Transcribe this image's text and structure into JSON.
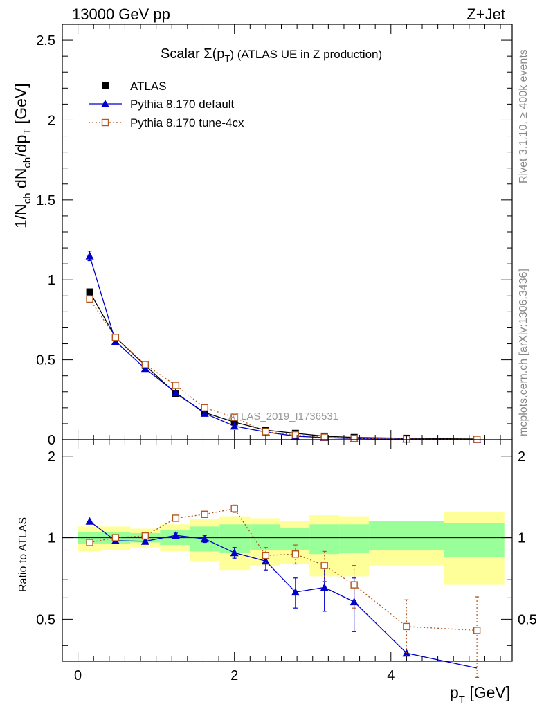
{
  "header": {
    "energy_label": "13000 GeV pp",
    "process_label": "Z+Jet",
    "rivet_label": "Rivet 3.1.10, ≥ 400k events",
    "mcplots_label": "mcplots.cern.ch [arXiv:1306.3436]",
    "analysis_label": "ATLAS_2019_I1736531"
  },
  "chart_data": [
    {
      "type": "scatter",
      "panel": "main",
      "title": "Scalar Σ(p_T) (ATLAS UE in Z production)",
      "title_parts": {
        "pre": "Scalar Σ(p",
        "sub": "T",
        "post": ") (ATLAS UE in Z production)"
      },
      "xlabel": "p_T [GeV]",
      "ylabel": "1/N_ch dN_ch/dp_T [GeV]",
      "xlim": [
        -0.2,
        5.55
      ],
      "ylim": [
        0,
        2.6
      ],
      "xticks": [
        0,
        2,
        4
      ],
      "yticks": [
        0,
        0.5,
        1,
        1.5,
        2,
        2.5
      ],
      "ytick_labels": [
        "0",
        "0.5",
        "1",
        "1.5",
        "2",
        "2.5"
      ],
      "legend_position": "top-left",
      "legend": [
        "ATLAS",
        "Pythia 8.170 default",
        "Pythia 8.170 tune-4cx"
      ],
      "x": [
        0.15,
        0.48,
        0.86,
        1.25,
        1.62,
        2.0,
        2.4,
        2.78,
        3.15,
        3.53,
        4.2,
        5.1
      ],
      "series": [
        {
          "name": "ATLAS",
          "color": "#000000",
          "marker": "square",
          "values": [
            0.925,
            0.64,
            0.465,
            0.29,
            0.17,
            0.11,
            0.06,
            0.04,
            0.022,
            0.014,
            0.009,
            0.004
          ]
        },
        {
          "name": "Pythia 8.170 default",
          "color": "#0000cc",
          "marker": "triangle",
          "values": [
            1.15,
            0.615,
            0.445,
            0.295,
            0.165,
            0.085,
            0.048,
            0.022,
            0.013,
            0.007,
            0.003,
            0.001
          ],
          "errors": [
            0.03,
            0,
            0,
            0,
            0,
            0,
            0,
            0,
            0,
            0,
            0,
            0
          ]
        },
        {
          "name": "Pythia 8.170 tune-4cx",
          "color": "#b5561b",
          "marker": "open-square",
          "values": [
            0.88,
            0.64,
            0.47,
            0.34,
            0.2,
            0.14,
            0.05,
            0.03,
            0.015,
            0.008,
            0.004,
            0.002
          ]
        }
      ]
    },
    {
      "type": "scatter",
      "panel": "ratio",
      "xlabel": "p_T [GeV]",
      "ylabel": "Ratio to ATLAS",
      "xlim": [
        -0.2,
        5.55
      ],
      "ylim": [
        0.35,
        2.3
      ],
      "xticks": [
        0,
        2,
        4
      ],
      "yticks": [
        0.5,
        1,
        2
      ],
      "ytick_labels": [
        "0.5",
        "1",
        "2"
      ],
      "bins": [
        {
          "lo": 0.0,
          "hi": 0.3,
          "g": [
            0.95,
            1.05
          ],
          "y": [
            0.89,
            1.1
          ]
        },
        {
          "lo": 0.3,
          "hi": 0.67,
          "g": [
            0.95,
            1.05
          ],
          "y": [
            0.9,
            1.1
          ]
        },
        {
          "lo": 0.67,
          "hi": 1.05,
          "g": [
            0.96,
            1.04
          ],
          "y": [
            0.92,
            1.08
          ]
        },
        {
          "lo": 1.05,
          "hi": 1.43,
          "g": [
            0.94,
            1.07
          ],
          "y": [
            0.89,
            1.12
          ]
        },
        {
          "lo": 1.43,
          "hi": 1.81,
          "g": [
            0.89,
            1.1
          ],
          "y": [
            0.82,
            1.17
          ]
        },
        {
          "lo": 1.81,
          "hi": 2.2,
          "g": [
            0.88,
            1.12
          ],
          "y": [
            0.76,
            1.2
          ]
        },
        {
          "lo": 2.2,
          "hi": 2.58,
          "g": [
            0.9,
            1.12
          ],
          "y": [
            0.79,
            1.18
          ]
        },
        {
          "lo": 2.58,
          "hi": 2.96,
          "g": [
            0.9,
            1.09
          ],
          "y": [
            0.8,
            1.15
          ]
        },
        {
          "lo": 2.96,
          "hi": 3.34,
          "g": [
            0.87,
            1.12
          ],
          "y": [
            0.72,
            1.21
          ]
        },
        {
          "lo": 3.34,
          "hi": 3.72,
          "g": [
            0.88,
            1.12
          ],
          "y": [
            0.72,
            1.2
          ]
        },
        {
          "lo": 3.72,
          "hi": 4.68,
          "g": [
            0.9,
            1.15
          ],
          "y": [
            0.79,
            1.15
          ]
        },
        {
          "lo": 4.68,
          "hi": 5.45,
          "g": [
            0.85,
            1.13
          ],
          "y": [
            0.67,
            1.24
          ]
        }
      ],
      "x": [
        0.15,
        0.48,
        0.86,
        1.25,
        1.62,
        2.0,
        2.4,
        2.78,
        3.15,
        3.53,
        4.2,
        5.1
      ],
      "series": [
        {
          "name": "Pythia 8.170 default",
          "color": "#0000cc",
          "marker": "triangle",
          "values": [
            1.15,
            0.975,
            0.97,
            1.02,
            0.99,
            0.88,
            0.82,
            0.63,
            0.655,
            0.58,
            0.375,
            0.33
          ],
          "errors": [
            0,
            0,
            0,
            0.02,
            0.03,
            0.04,
            0.06,
            0.08,
            0.12,
            0.13,
            0,
            0
          ]
        },
        {
          "name": "Pythia 8.170 tune-4cx",
          "color": "#b5561b",
          "marker": "open-square",
          "values": [
            0.96,
            1.0,
            1.015,
            1.18,
            1.22,
            1.28,
            0.86,
            0.87,
            0.79,
            0.67,
            0.47,
            0.455
          ],
          "errors": [
            0.01,
            0,
            0,
            0.02,
            0.03,
            0.04,
            0.06,
            0.07,
            0.1,
            0.12,
            0.12,
            0.15
          ]
        }
      ]
    }
  ]
}
